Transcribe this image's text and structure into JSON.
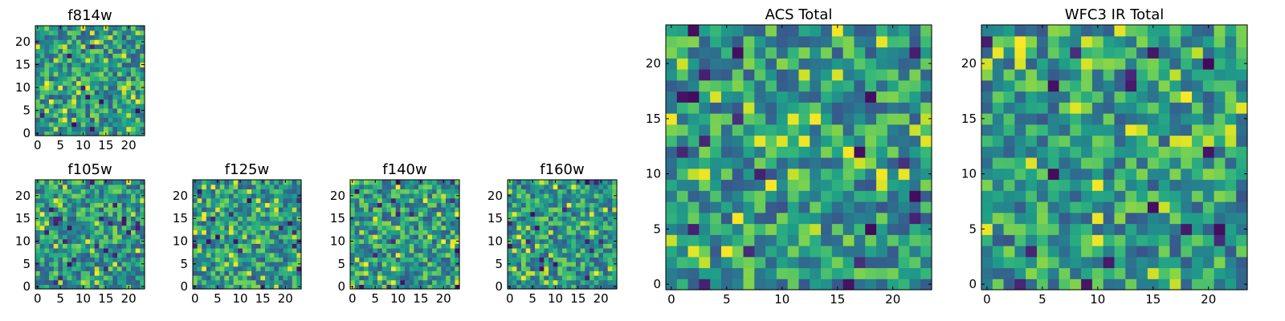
{
  "chart_data": [
    {
      "id": "f814w",
      "type": "heatmap",
      "title": "f814w",
      "colormap": "viridis",
      "grid_size": [
        24,
        24
      ],
      "xlim": [
        0,
        24
      ],
      "ylim": [
        0,
        24
      ],
      "x_ticks": [
        "0",
        "5",
        "10",
        "15",
        "20"
      ],
      "y_ticks": [
        "0",
        "5",
        "10",
        "15",
        "20"
      ],
      "seed": 11
    },
    {
      "id": "f105w",
      "type": "heatmap",
      "title": "f105w",
      "colormap": "viridis",
      "grid_size": [
        24,
        24
      ],
      "xlim": [
        0,
        24
      ],
      "ylim": [
        0,
        24
      ],
      "x_ticks": [
        "0",
        "5",
        "10",
        "15",
        "20"
      ],
      "y_ticks": [
        "0",
        "5",
        "10",
        "15",
        "20"
      ],
      "seed": 23
    },
    {
      "id": "f125w",
      "type": "heatmap",
      "title": "f125w",
      "colormap": "viridis",
      "grid_size": [
        24,
        24
      ],
      "xlim": [
        0,
        24
      ],
      "ylim": [
        0,
        24
      ],
      "x_ticks": [
        "0",
        "5",
        "10",
        "15",
        "20"
      ],
      "y_ticks": [
        "0",
        "5",
        "10",
        "15",
        "20"
      ],
      "seed": 37
    },
    {
      "id": "f140w",
      "type": "heatmap",
      "title": "f140w",
      "colormap": "viridis",
      "grid_size": [
        24,
        24
      ],
      "xlim": [
        0,
        24
      ],
      "ylim": [
        0,
        24
      ],
      "x_ticks": [
        "0",
        "5",
        "10",
        "15",
        "20"
      ],
      "y_ticks": [
        "0",
        "5",
        "10",
        "15",
        "20"
      ],
      "seed": 41
    },
    {
      "id": "f160w",
      "type": "heatmap",
      "title": "f160w",
      "colormap": "viridis",
      "grid_size": [
        24,
        24
      ],
      "xlim": [
        0,
        24
      ],
      "ylim": [
        0,
        24
      ],
      "x_ticks": [
        "0",
        "5",
        "10",
        "15",
        "20"
      ],
      "y_ticks": [
        "0",
        "5",
        "10",
        "15",
        "20"
      ],
      "seed": 53
    },
    {
      "id": "acs-total",
      "type": "heatmap",
      "title": "ACS Total",
      "colormap": "viridis",
      "grid_size": [
        24,
        24
      ],
      "xlim": [
        0,
        24
      ],
      "ylim": [
        0,
        24
      ],
      "x_ticks": [
        "0",
        "5",
        "10",
        "15",
        "20"
      ],
      "y_ticks": [
        "0",
        "5",
        "10",
        "15",
        "20"
      ],
      "seed": 67
    },
    {
      "id": "wfc3-ir-total",
      "type": "heatmap",
      "title": "WFC3 IR Total",
      "colormap": "viridis",
      "grid_size": [
        24,
        24
      ],
      "xlim": [
        0,
        24
      ],
      "ylim": [
        0,
        24
      ],
      "x_ticks": [
        "0",
        "5",
        "10",
        "15",
        "20"
      ],
      "y_ticks": [
        "0",
        "5",
        "10",
        "15",
        "20"
      ],
      "seed": 79
    }
  ]
}
